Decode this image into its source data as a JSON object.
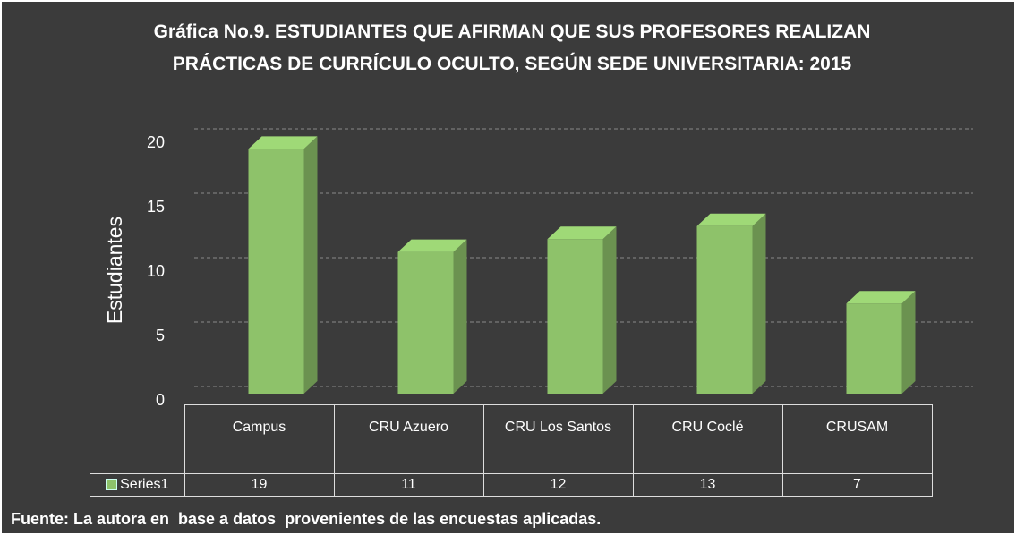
{
  "chart_data": {
    "type": "bar",
    "title": "Gráfica No.9. ESTUDIANTES QUE AFIRMAN QUE SUS PROFESORES REALIZAN PRÁCTICAS DE CURRÍCULO OCULTO, SEGÚN SEDE UNIVERSITARIA: 2015",
    "y_label": "Estudiantes",
    "categories": [
      "Campus",
      "CRU Azuero",
      "CRU Los Santos",
      "CRU Coclé",
      "CRUSAM"
    ],
    "series": [
      {
        "name": "Series1",
        "color": "#8ec26a",
        "values": [
          19,
          11,
          12,
          13,
          7
        ]
      }
    ],
    "ylim": [
      0,
      20
    ],
    "yticks": [
      0,
      5,
      10,
      15,
      20
    ],
    "grid": true,
    "source": "Fuente: La autora en  base a datos  provenientes de las encuestas aplicadas."
  }
}
